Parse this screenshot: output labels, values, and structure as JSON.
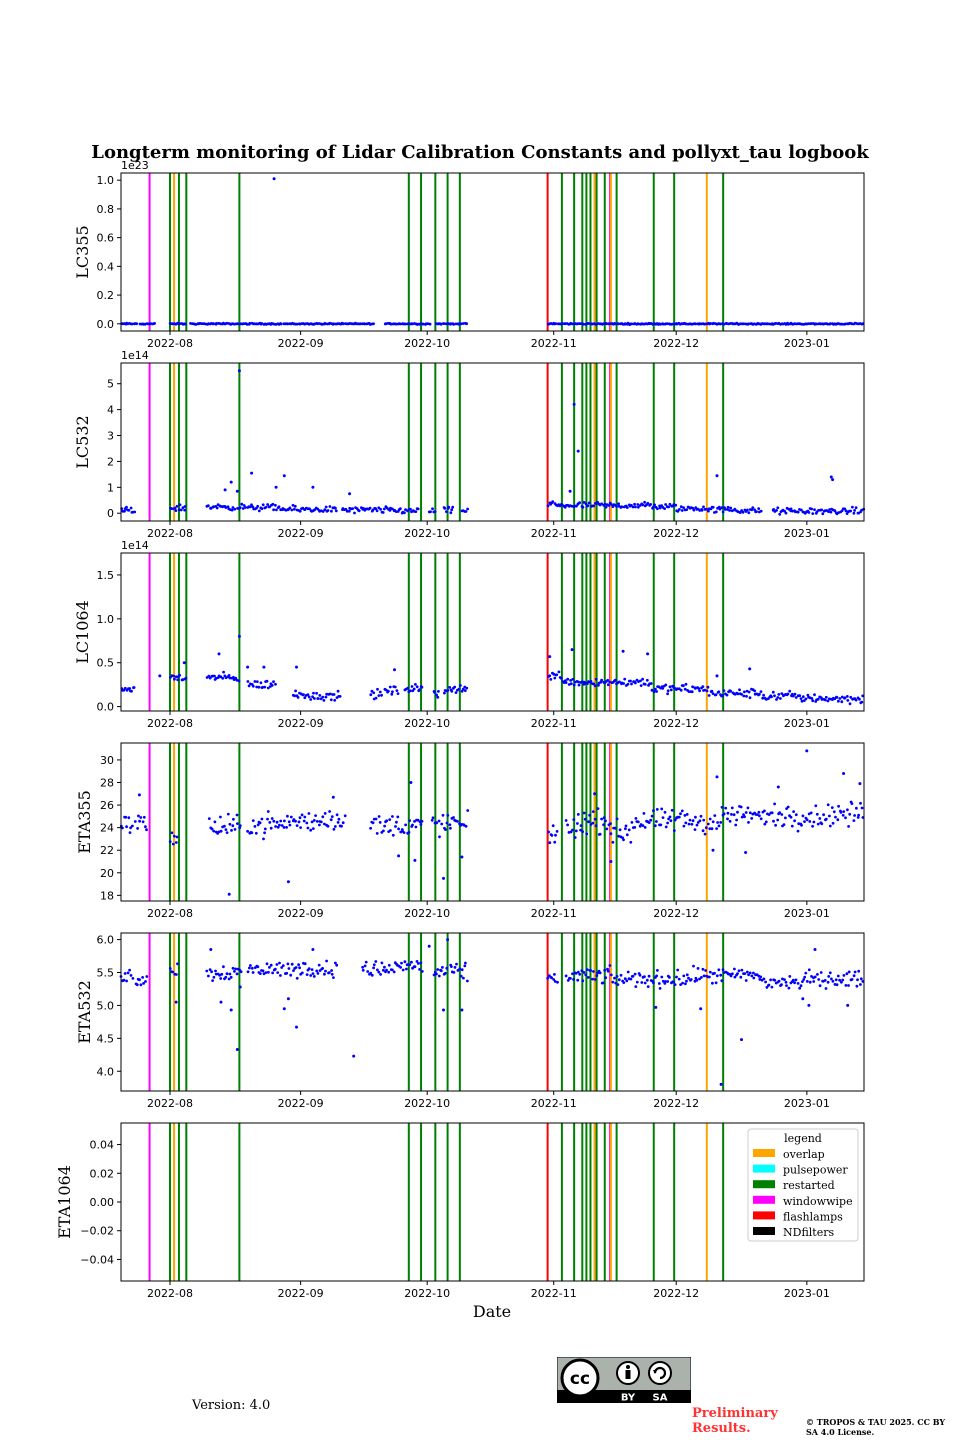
{
  "figure": {
    "title": "Longterm monitoring of Lidar Calibration Constants and pollyxt_tau logbook",
    "xlabel": "Date",
    "version_text": "Version: 4.0",
    "preliminary_text": "Preliminary Results.",
    "copyright_text": "© TROPOS & TAU 2025. CC BY SA 4.0 License.",
    "license_badge": {
      "main": "cc",
      "by": "BY",
      "sa": "SA"
    }
  },
  "colors": {
    "overlap": "#FFA500",
    "pulsepower": "#00FFFF",
    "restarted": "#008000",
    "windowwipe": "#FF00FF",
    "flashlamps": "#FF0000",
    "NDfilters": "#000000",
    "points": "#0000FF"
  },
  "chart_data": {
    "type": "scatter",
    "x_range": [
      -6,
      176
    ],
    "x_ticks": [
      {
        "value": 6,
        "label": "2022-08"
      },
      {
        "value": 38,
        "label": "2022-09"
      },
      {
        "value": 69,
        "label": "2022-10"
      },
      {
        "value": 100,
        "label": "2022-11"
      },
      {
        "value": 130,
        "label": "2022-12"
      },
      {
        "value": 162,
        "label": "2023-01"
      }
    ],
    "events": [
      {
        "day": 1,
        "type": "windowwipe"
      },
      {
        "day": 6,
        "type": "restarted"
      },
      {
        "day": 7,
        "type": "overlap"
      },
      {
        "day": 8.2,
        "type": "restarted"
      },
      {
        "day": 10,
        "type": "restarted"
      },
      {
        "day": 23,
        "type": "restarted"
      },
      {
        "day": 64.5,
        "type": "restarted"
      },
      {
        "day": 67.5,
        "type": "restarted"
      },
      {
        "day": 71,
        "type": "restarted"
      },
      {
        "day": 74,
        "type": "restarted"
      },
      {
        "day": 77,
        "type": "restarted"
      },
      {
        "day": 98.5,
        "type": "flashlamps"
      },
      {
        "day": 102,
        "type": "restarted"
      },
      {
        "day": 105,
        "type": "restarted"
      },
      {
        "day": 107,
        "type": "restarted"
      },
      {
        "day": 108,
        "type": "restarted"
      },
      {
        "day": 109,
        "type": "restarted"
      },
      {
        "day": 110,
        "type": "overlap"
      },
      {
        "day": 110.5,
        "type": "restarted"
      },
      {
        "day": 112.5,
        "type": "restarted"
      },
      {
        "day": 113.8,
        "type": "windowwipe"
      },
      {
        "day": 114,
        "type": "overlap"
      },
      {
        "day": 115.4,
        "type": "restarted"
      },
      {
        "day": 124.5,
        "type": "restarted"
      },
      {
        "day": 129.5,
        "type": "restarted"
      },
      {
        "day": 137.5,
        "type": "overlap"
      },
      {
        "day": 141.5,
        "type": "restarted"
      }
    ],
    "panels": [
      {
        "ylabel": "LC355",
        "multiplier": "1e23",
        "ylim": [
          -0.05,
          1.05
        ],
        "yticks": [
          "0.0",
          "0.2",
          "0.4",
          "0.6",
          "0.8",
          "1.0"
        ],
        "ytick_values": [
          0,
          0.2,
          0.4,
          0.6,
          0.8,
          1.0
        ],
        "series": {
          "segments": [
            [
              -6,
              -2,
              0.0
            ],
            [
              -1.5,
              2.5,
              0.0
            ],
            [
              6,
              10,
              0.0
            ],
            [
              11,
              23,
              0.0
            ],
            [
              23.2,
              33.5,
              0.0
            ],
            [
              33.8,
              56,
              0.0
            ],
            [
              58.5,
              70,
              0.0
            ],
            [
              71,
              75.8,
              0.0
            ],
            [
              76,
              78.8,
              0.0
            ],
            [
              98.5,
              176,
              0.0
            ]
          ],
          "spread": 0.004,
          "outliers": [
            [
              31.5,
              1.01
            ]
          ]
        }
      },
      {
        "ylabel": "LC532",
        "multiplier": "1e14",
        "ylim": [
          -0.3,
          5.8
        ],
        "yticks": [
          "0",
          "1",
          "2",
          "3",
          "4",
          "5"
        ],
        "ytick_values": [
          0,
          1,
          2,
          3,
          4,
          5
        ],
        "series": {
          "segments": [
            [
              -6,
              -2.5,
              0.1
            ],
            [
              6,
              10,
              0.2
            ],
            [
              15,
              22,
              0.25
            ],
            [
              22.5,
              33,
              0.22
            ],
            [
              33,
              47,
              0.15
            ],
            [
              48,
              61,
              0.12
            ],
            [
              61,
              67,
              0.1
            ],
            [
              69.5,
              71,
              0.1
            ],
            [
              73,
              75.5,
              0.1
            ],
            [
              77.5,
              79,
              0.1
            ],
            [
              98.5,
              101,
              0.35
            ],
            [
              101,
              114,
              0.3
            ],
            [
              114,
              124,
              0.3
            ],
            [
              124,
              130,
              0.25
            ],
            [
              130,
              138,
              0.18
            ],
            [
              138,
              145,
              0.14
            ],
            [
              145,
              151,
              0.1
            ],
            [
              153.5,
              176,
              0.08
            ]
          ],
          "spread": 0.12,
          "outliers": [
            [
              23,
              5.5
            ],
            [
              22.5,
              0.85
            ],
            [
              26,
              1.55
            ],
            [
              34,
              1.45
            ],
            [
              32,
              1.0
            ],
            [
              41,
              1.0
            ],
            [
              50,
              0.75
            ],
            [
              105,
              4.2
            ],
            [
              106,
              2.4
            ],
            [
              140,
              1.45
            ],
            [
              168,
              1.4
            ],
            [
              168.3,
              1.3
            ],
            [
              21,
              1.2
            ],
            [
              19.5,
              0.9
            ],
            [
              104,
              0.85
            ]
          ]
        }
      },
      {
        "ylabel": "LC1064",
        "multiplier": "1e14",
        "ylim": [
          -0.05,
          1.75
        ],
        "yticks": [
          "0.0",
          "0.5",
          "1.0",
          "1.5"
        ],
        "ytick_values": [
          0,
          0.5,
          1.0,
          1.5
        ],
        "series": {
          "segments": [
            [
              -6,
              -2.5,
              0.2
            ],
            [
              6,
              10,
              0.33
            ],
            [
              15,
              23,
              0.33
            ],
            [
              25,
              32,
              0.25
            ],
            [
              36,
              40,
              0.14
            ],
            [
              40,
              48,
              0.12
            ],
            [
              55,
              58,
              0.14
            ],
            [
              58.5,
              62,
              0.18
            ],
            [
              63.5,
              68,
              0.2
            ],
            [
              70.5,
              72,
              0.15
            ],
            [
              73,
              79,
              0.2
            ],
            [
              98.5,
              102,
              0.35
            ],
            [
              102,
              104.5,
              0.3
            ],
            [
              104.5,
              114,
              0.28
            ],
            [
              114,
              124,
              0.28
            ],
            [
              124,
              130,
              0.2
            ],
            [
              130,
              138,
              0.2
            ],
            [
              138,
              151,
              0.15
            ],
            [
              151,
              160,
              0.12
            ],
            [
              160,
              166,
              0.1
            ],
            [
              166,
              176,
              0.09
            ]
          ],
          "spread": 0.05,
          "outliers": [
            [
              23,
              0.8
            ],
            [
              18,
              0.6
            ],
            [
              29,
              0.45
            ],
            [
              25,
              0.45
            ],
            [
              37,
              0.45
            ],
            [
              61,
              0.42
            ],
            [
              99,
              0.57
            ],
            [
              104.5,
              0.65
            ],
            [
              117,
              0.63
            ],
            [
              123,
              0.6
            ],
            [
              140,
              0.35
            ],
            [
              148,
              0.43
            ],
            [
              9.5,
              0.5
            ],
            [
              3.5,
              0.35
            ]
          ]
        }
      },
      {
        "ylabel": "ETA355",
        "multiplier": "",
        "ylim": [
          17.5,
          31.5
        ],
        "yticks": [
          "18",
          "20",
          "22",
          "24",
          "26",
          "28",
          "30"
        ],
        "ytick_values": [
          18,
          20,
          22,
          24,
          26,
          28,
          30
        ],
        "series": {
          "segments": [
            [
              -6,
              -3,
              24.3
            ],
            [
              -2.5,
              0.5,
              24.3
            ],
            [
              6,
              8,
              23.2
            ],
            [
              15.5,
              23.5,
              24.0
            ],
            [
              25,
              34,
              24.3
            ],
            [
              34,
              43,
              24.5
            ],
            [
              43,
              49,
              24.8
            ],
            [
              55,
              60,
              24.2
            ],
            [
              60,
              68,
              24.2
            ],
            [
              70,
              73,
              24.3
            ],
            [
              73,
              79,
              24.3
            ],
            [
              98.5,
              101,
              23.5
            ],
            [
              103,
              106,
              24.0
            ],
            [
              106,
              114,
              24.5
            ],
            [
              114,
              119,
              23.6
            ],
            [
              119,
              126,
              24.5
            ],
            [
              126,
              134,
              24.6
            ],
            [
              134,
              141,
              24.5
            ],
            [
              141,
              150,
              25.1
            ],
            [
              150,
              158,
              25.0
            ],
            [
              158,
              167,
              25.0
            ],
            [
              167,
              176,
              25.2
            ]
          ],
          "spread": 1.0,
          "outliers": [
            [
              -1.5,
              26.9
            ],
            [
              20.5,
              18.1
            ],
            [
              35,
              19.2
            ],
            [
              46,
              26.7
            ],
            [
              65,
              28.0
            ],
            [
              66,
              21.1
            ],
            [
              73,
              19.5
            ],
            [
              77.5,
              21.4
            ],
            [
              62,
              21.5
            ],
            [
              110,
              27
            ],
            [
              114,
              21
            ],
            [
              139,
              22
            ],
            [
              140,
              28.5
            ],
            [
              147,
              21.8
            ],
            [
              155,
              27.6
            ],
            [
              162,
              30.8
            ],
            [
              171,
              28.8
            ],
            [
              175,
              27.9
            ]
          ]
        }
      },
      {
        "ylabel": "ETA532",
        "multiplier": "",
        "ylim": [
          3.7,
          6.1
        ],
        "yticks": [
          "4.0",
          "4.5",
          "5.0",
          "5.5",
          "6.0"
        ],
        "ytick_values": [
          4.0,
          4.5,
          5.0,
          5.5,
          6.0
        ],
        "series": {
          "segments": [
            [
              -6,
              -3,
              5.45
            ],
            [
              -2.5,
              0.5,
              5.4
            ],
            [
              6,
              8,
              5.55
            ],
            [
              15,
              23.5,
              5.5
            ],
            [
              25,
              34,
              5.55
            ],
            [
              34,
              43,
              5.55
            ],
            [
              43,
              47,
              5.55
            ],
            [
              53,
              61,
              5.55
            ],
            [
              61,
              68,
              5.6
            ],
            [
              70.5,
              74,
              5.5
            ],
            [
              74.5,
              79,
              5.5
            ],
            [
              98.5,
              101,
              5.4
            ],
            [
              103,
              106,
              5.45
            ],
            [
              106,
              114,
              5.45
            ],
            [
              114,
              124,
              5.4
            ],
            [
              124,
              134,
              5.4
            ],
            [
              134,
              141,
              5.45
            ],
            [
              141,
              151,
              5.45
            ],
            [
              151,
              161,
              5.35
            ],
            [
              161,
              169,
              5.4
            ],
            [
              169,
              176,
              5.4
            ]
          ],
          "spread": 0.12,
          "outliers": [
            [
              7.5,
              5.05
            ],
            [
              16,
              5.85
            ],
            [
              18.5,
              5.05
            ],
            [
              21,
              4.93
            ],
            [
              22.5,
              4.33
            ],
            [
              23.2,
              5.28
            ],
            [
              35,
              5.1
            ],
            [
              34,
              4.95
            ],
            [
              37,
              4.67
            ],
            [
              41,
              5.85
            ],
            [
              51,
              4.23
            ],
            [
              69.5,
              5.9
            ],
            [
              73,
              4.93
            ],
            [
              74,
              6.0
            ],
            [
              77.5,
              4.93
            ],
            [
              125,
              4.97
            ],
            [
              136,
              4.95
            ],
            [
              146,
              4.48
            ],
            [
              141,
              3.8
            ],
            [
              164,
              5.85
            ],
            [
              162.5,
              5.0
            ],
            [
              161,
              5.1
            ],
            [
              172,
              5.0
            ]
          ]
        }
      },
      {
        "ylabel": "ETA1064",
        "multiplier": "",
        "ylim": [
          -0.055,
          0.055
        ],
        "yticks": [
          "−0.04",
          "−0.02",
          "0.00",
          "0.02",
          "0.04"
        ],
        "ytick_values": [
          -0.04,
          -0.02,
          0.0,
          0.02,
          0.04
        ],
        "series": {
          "segments": [],
          "spread": 0,
          "outliers": []
        },
        "legend": {
          "title": "legend",
          "entries": [
            {
              "label": "overlap",
              "key": "overlap"
            },
            {
              "label": "pulsepower",
              "key": "pulsepower"
            },
            {
              "label": "restarted",
              "key": "restarted"
            },
            {
              "label": "windowwipe",
              "key": "windowwipe"
            },
            {
              "label": "flashlamps",
              "key": "flashlamps"
            },
            {
              "label": "NDfilters",
              "key": "NDfilters"
            }
          ]
        }
      }
    ]
  }
}
